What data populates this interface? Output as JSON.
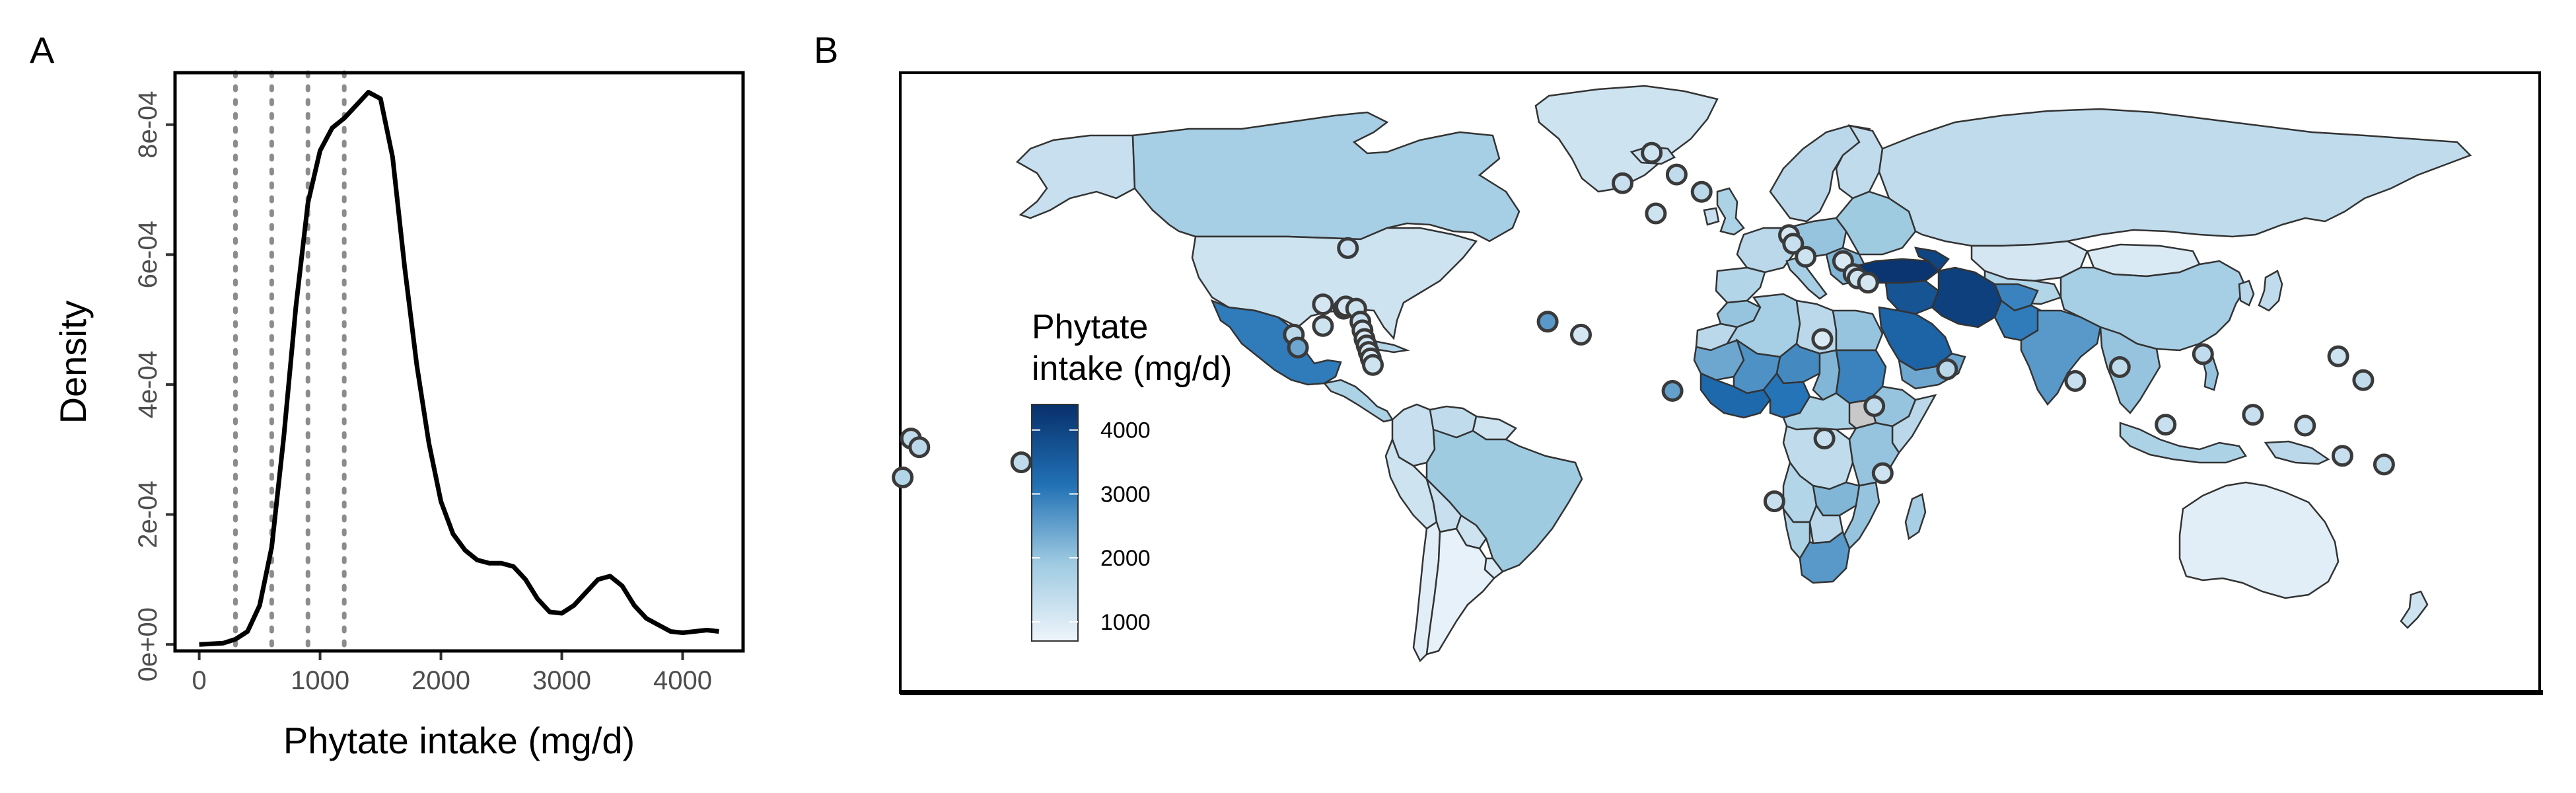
{
  "panels": {
    "a": "A",
    "b": "B"
  },
  "colors": {
    "density_line": "#000000",
    "threshold_line": "#8c8c8c",
    "ocean": "#ffffff",
    "missing": "#c8c8c8",
    "point_outline": "#3a3a3a",
    "low": "#eef4fb",
    "high": "#08306b"
  },
  "chart_data": [
    {
      "type": "line",
      "panel": "A",
      "xlabel": "Phytate intake (mg/d)",
      "ylabel": "Density",
      "xlim": [
        -200,
        4500
      ],
      "ylim": [
        -1e-05,
        0.00088
      ],
      "x_ticks": [
        0,
        1000,
        2000,
        3000,
        4000
      ],
      "x_tick_labels": [
        "0",
        "1000",
        "2000",
        "3000",
        "4000"
      ],
      "y_ticks": [
        0,
        0.0002,
        0.0004,
        0.0006,
        0.0008
      ],
      "y_tick_labels": [
        "0e+00",
        "2e-04",
        "4e-04",
        "6e-04",
        "8e-04"
      ],
      "grid": false,
      "vlines": [
        300,
        600,
        900,
        1200
      ],
      "series": [
        {
          "x": [
            0,
            200,
            300,
            400,
            500,
            600,
            700,
            800,
            900,
            1000,
            1100,
            1200,
            1300,
            1400,
            1500,
            1600,
            1700,
            1800,
            1900,
            2000,
            2100,
            2200,
            2300,
            2400,
            2500,
            2600,
            2700,
            2800,
            2900,
            3000,
            3100,
            3200,
            3300,
            3400,
            3500,
            3600,
            3700,
            3800,
            3900,
            4000,
            4100,
            4200,
            4300
          ],
          "y": [
            0,
            2e-06,
            8e-06,
            2e-05,
            6e-05,
            0.00015,
            0.00032,
            0.00052,
            0.00068,
            0.00076,
            0.000795,
            0.00081,
            0.00083,
            0.00085,
            0.00084,
            0.00075,
            0.00058,
            0.00043,
            0.00031,
            0.00022,
            0.00017,
            0.000145,
            0.00013,
            0.000125,
            0.000125,
            0.00012,
            0.0001,
            7e-05,
            5e-05,
            4.8e-05,
            6e-05,
            8e-05,
            0.0001,
            0.000105,
            9e-05,
            6e-05,
            4e-05,
            3e-05,
            2e-05,
            1.8e-05,
            2e-05,
            2.2e-05,
            2e-05
          ]
        }
      ]
    },
    {
      "type": "choropleth",
      "panel": "B",
      "legend": {
        "title_lines": [
          "Phytate",
          "intake (mg/d)"
        ],
        "ticks": [
          1000,
          2000,
          3000,
          4000
        ],
        "tick_labels": [
          "1000",
          "2000",
          "3000",
          "4000"
        ],
        "range": [
          700,
          4400
        ],
        "placement": "left"
      },
      "regions": [
        {
          "region": "Canada",
          "value": 1800
        },
        {
          "region": "Alaska",
          "value": 1300
        },
        {
          "region": "Greenland",
          "value": 1200
        },
        {
          "region": "United States",
          "value": 1200
        },
        {
          "region": "Mexico",
          "value": 3000
        },
        {
          "region": "Central America",
          "value": 1700
        },
        {
          "region": "Cuba",
          "value": 1600
        },
        {
          "region": "Colombia",
          "value": 1300
        },
        {
          "region": "Venezuela",
          "value": 1400
        },
        {
          "region": "Guianas",
          "value": 1200
        },
        {
          "region": "Brazil",
          "value": 1900
        },
        {
          "region": "Peru",
          "value": 1200
        },
        {
          "region": "Bolivia",
          "value": 1300
        },
        {
          "region": "Paraguay",
          "value": 1200
        },
        {
          "region": "Argentina",
          "value": 800
        },
        {
          "region": "Chile",
          "value": 900
        },
        {
          "region": "Uruguay",
          "value": 1000
        },
        {
          "region": "Iceland",
          "value": 1300
        },
        {
          "region": "Scandinavia",
          "value": 1500
        },
        {
          "region": "Finland",
          "value": 1400
        },
        {
          "region": "United Kingdom",
          "value": 1700
        },
        {
          "region": "Ireland",
          "value": 1300
        },
        {
          "region": "Western Europe",
          "value": 1500
        },
        {
          "region": "Iberia",
          "value": 1600
        },
        {
          "region": "Italy",
          "value": 1800
        },
        {
          "region": "Central Europe",
          "value": 2000
        },
        {
          "region": "Balkans",
          "value": 2200
        },
        {
          "region": "Eastern Europe",
          "value": 1900
        },
        {
          "region": "Russia",
          "value": 1400
        },
        {
          "region": "Kazakhstan",
          "value": 1100
        },
        {
          "region": "Central Asia",
          "value": 1600
        },
        {
          "region": "Mongolia",
          "value": 1000
        },
        {
          "region": "China",
          "value": 1800
        },
        {
          "region": "Japan",
          "value": 1400
        },
        {
          "region": "Korea",
          "value": 1500
        },
        {
          "region": "Turkey",
          "value": 4300
        },
        {
          "region": "Caucasus",
          "value": 4000
        },
        {
          "region": "Iran",
          "value": 4100
        },
        {
          "region": "Iraq-Syria",
          "value": 3700
        },
        {
          "region": "Saudi Arabia",
          "value": 3400
        },
        {
          "region": "Yemen-Oman",
          "value": 2400
        },
        {
          "region": "Afghanistan",
          "value": 2900
        },
        {
          "region": "Pakistan",
          "value": 3000
        },
        {
          "region": "India",
          "value": 2600
        },
        {
          "region": "Southeast Asia",
          "value": 2000
        },
        {
          "region": "Indonesia",
          "value": 1700
        },
        {
          "region": "Philippines",
          "value": 2000
        },
        {
          "region": "Papua New Guinea",
          "value": 1500
        },
        {
          "region": "Australia",
          "value": 900
        },
        {
          "region": "New Zealand",
          "value": 1200
        },
        {
          "region": "Morocco",
          "value": 2000
        },
        {
          "region": "Algeria",
          "value": 1800
        },
        {
          "region": "Libya",
          "value": 1500
        },
        {
          "region": "Egypt",
          "value": 2000
        },
        {
          "region": "Western Sahara",
          "value": 1500
        },
        {
          "region": "Mauritania",
          "value": 2400
        },
        {
          "region": "Mali",
          "value": 2700
        },
        {
          "region": "Niger",
          "value": 2800
        },
        {
          "region": "Chad",
          "value": 2200
        },
        {
          "region": "Sudan",
          "value": 2900
        },
        {
          "region": "West Africa",
          "value": 3300
        },
        {
          "region": "Nigeria",
          "value": 3100
        },
        {
          "region": "Ethiopia",
          "value": 2000
        },
        {
          "region": "Somalia",
          "value": 1500
        },
        {
          "region": "Central Africa",
          "value": 1700
        },
        {
          "region": "DR Congo",
          "value": 1400
        },
        {
          "region": "East Africa",
          "value": 2000
        },
        {
          "region": "Angola",
          "value": 1600
        },
        {
          "region": "Zambia",
          "value": 2200
        },
        {
          "region": "Mozambique",
          "value": 2000
        },
        {
          "region": "Namibia",
          "value": 1700
        },
        {
          "region": "Botswana",
          "value": 1500
        },
        {
          "region": "South Africa",
          "value": 2600
        },
        {
          "region": "Madagascar",
          "value": 1800
        }
      ],
      "points": [
        {
          "lon": -84,
          "lat": 12,
          "value": 1500
        },
        {
          "lon": -83,
          "lat": 9,
          "value": 2400
        },
        {
          "lon": -71,
          "lat": 32,
          "value": 1300
        },
        {
          "lon": -77,
          "lat": 19,
          "value": 1100
        },
        {
          "lon": -77,
          "lat": 14,
          "value": 1200
        },
        {
          "lon": -72,
          "lat": 18,
          "value": 1000
        },
        {
          "lon": -71.5,
          "lat": 18.5,
          "value": 1100
        },
        {
          "lon": -69,
          "lat": 18,
          "value": 1200
        },
        {
          "lon": -68,
          "lat": 15,
          "value": 1300
        },
        {
          "lon": -67.5,
          "lat": 13,
          "value": 1100
        },
        {
          "lon": -67,
          "lat": 11,
          "value": 1000
        },
        {
          "lon": -66.5,
          "lat": 9.5,
          "value": 1200
        },
        {
          "lon": -66,
          "lat": 8,
          "value": 1100
        },
        {
          "lon": -65.5,
          "lat": 6.5,
          "value": 1000
        },
        {
          "lon": -65,
          "lat": 5,
          "value": 1200
        },
        {
          "lon": -176,
          "lat": -12,
          "value": 1400
        },
        {
          "lon": -174,
          "lat": -14,
          "value": 1500
        },
        {
          "lon": -178,
          "lat": -21,
          "value": 1600
        },
        {
          "lon": -149.5,
          "lat": -17.5,
          "value": 1400
        },
        {
          "lon": -23,
          "lat": 15,
          "value": 2600
        },
        {
          "lon": -15,
          "lat": 12,
          "value": 1100
        },
        {
          "lon": -5,
          "lat": 47,
          "value": 1300
        },
        {
          "lon": 2,
          "lat": 54,
          "value": 1200
        },
        {
          "lon": 8,
          "lat": 49,
          "value": 1400
        },
        {
          "lon": 14,
          "lat": 45,
          "value": 1500
        },
        {
          "lon": 3,
          "lat": 40,
          "value": 1200
        },
        {
          "lon": 7,
          "lat": -1,
          "value": 2500
        },
        {
          "lon": 35,
          "lat": 35,
          "value": 1100
        },
        {
          "lon": 36,
          "lat": 33,
          "value": 1300
        },
        {
          "lon": 39,
          "lat": 30,
          "value": 1200
        },
        {
          "lon": 48,
          "lat": 29,
          "value": 1000
        },
        {
          "lon": 50.5,
          "lat": 26,
          "value": 1300
        },
        {
          "lon": 51.5,
          "lat": 25,
          "value": 1200
        },
        {
          "lon": 54,
          "lat": 24,
          "value": 1100
        },
        {
          "lon": 43,
          "lat": 11,
          "value": 1000
        },
        {
          "lon": 43.5,
          "lat": -12,
          "value": 1300
        },
        {
          "lon": 55.5,
          "lat": -4.5,
          "value": 1400
        },
        {
          "lon": 57.5,
          "lat": -20,
          "value": 1200
        },
        {
          "lon": 31.5,
          "lat": -26.5,
          "value": 1300
        },
        {
          "lon": 73,
          "lat": 4,
          "value": 1500
        },
        {
          "lon": 103.8,
          "lat": 1.3,
          "value": 1300
        },
        {
          "lon": 114.5,
          "lat": 4.5,
          "value": 1400
        },
        {
          "lon": 125.5,
          "lat": -8.8,
          "value": 1300
        },
        {
          "lon": 134.5,
          "lat": 7.5,
          "value": 1400
        },
        {
          "lon": 159,
          "lat": -9,
          "value": 1300
        },
        {
          "lon": 167,
          "lat": 7,
          "value": 1200
        },
        {
          "lon": 173,
          "lat": 1.5,
          "value": 1400
        },
        {
          "lon": 168,
          "lat": -16,
          "value": 1300
        },
        {
          "lon": 178,
          "lat": -18,
          "value": 1400
        },
        {
          "lon": 146.5,
          "lat": -6.5,
          "value": 1300
        }
      ]
    }
  ]
}
